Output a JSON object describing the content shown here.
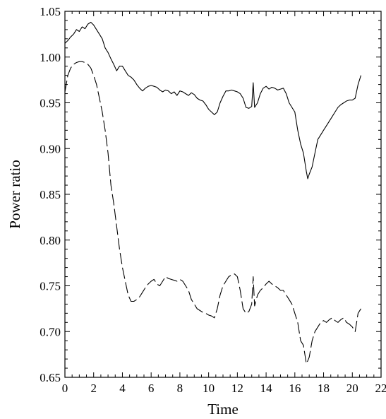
{
  "chart_data": {
    "type": "line",
    "title": "",
    "xlabel": "Time",
    "ylabel": "Power ratio",
    "xlim": [
      0,
      22
    ],
    "ylim": [
      0.65,
      1.05
    ],
    "x_ticks": [
      "0",
      "2",
      "4",
      "6",
      "8",
      "10",
      "12",
      "14",
      "16",
      "18",
      "20",
      "22"
    ],
    "y_ticks": [
      "0.65",
      "0.70",
      "0.75",
      "0.80",
      "0.85",
      "0.90",
      "0.95",
      "1.00",
      "1.05"
    ],
    "grid": false,
    "legend": "none",
    "series": [
      {
        "style": "solid",
        "color": "#000000",
        "x": [
          0,
          0.2,
          0.4,
          0.6,
          0.8,
          1.0,
          1.2,
          1.4,
          1.6,
          1.8,
          2.0,
          2.2,
          2.4,
          2.6,
          2.8,
          3.0,
          3.2,
          3.4,
          3.6,
          3.8,
          4.0,
          4.2,
          4.4,
          4.6,
          4.8,
          5.0,
          5.2,
          5.4,
          5.6,
          5.8,
          6.0,
          6.2,
          6.4,
          6.6,
          6.8,
          7.0,
          7.2,
          7.4,
          7.6,
          7.8,
          8.0,
          8.2,
          8.4,
          8.6,
          8.8,
          9.0,
          9.2,
          9.4,
          9.6,
          9.8,
          10.0,
          10.2,
          10.4,
          10.6,
          10.8,
          11.0,
          11.2,
          11.4,
          11.6,
          11.8,
          12.0,
          12.2,
          12.4,
          12.6,
          12.8,
          13.0,
          13.1,
          13.2,
          13.4,
          13.6,
          13.8,
          14.0,
          14.2,
          14.4,
          14.6,
          14.8,
          15.0,
          15.2,
          15.4,
          15.6,
          15.8,
          16.0,
          16.2,
          16.4,
          16.6,
          16.8,
          16.9,
          17.0,
          17.2,
          17.4,
          17.6,
          17.8,
          18.0,
          18.2,
          18.4,
          18.6,
          18.8,
          19.0,
          19.2,
          19.4,
          19.6,
          19.8,
          20.0,
          20.2,
          20.4,
          20.6
        ],
        "y": [
          1.015,
          1.018,
          1.022,
          1.025,
          1.03,
          1.028,
          1.033,
          1.031,
          1.036,
          1.038,
          1.035,
          1.03,
          1.025,
          1.02,
          1.01,
          1.005,
          0.998,
          0.992,
          0.985,
          0.99,
          0.99,
          0.985,
          0.98,
          0.978,
          0.975,
          0.97,
          0.966,
          0.963,
          0.966,
          0.968,
          0.969,
          0.968,
          0.967,
          0.964,
          0.962,
          0.964,
          0.963,
          0.96,
          0.962,
          0.958,
          0.963,
          0.962,
          0.96,
          0.958,
          0.961,
          0.959,
          0.955,
          0.953,
          0.952,
          0.948,
          0.943,
          0.94,
          0.937,
          0.94,
          0.95,
          0.957,
          0.963,
          0.963,
          0.964,
          0.963,
          0.962,
          0.96,
          0.955,
          0.945,
          0.944,
          0.946,
          0.972,
          0.945,
          0.95,
          0.96,
          0.966,
          0.968,
          0.965,
          0.967,
          0.966,
          0.964,
          0.965,
          0.966,
          0.96,
          0.95,
          0.945,
          0.94,
          0.92,
          0.905,
          0.895,
          0.875,
          0.867,
          0.872,
          0.88,
          0.895,
          0.91,
          0.915,
          0.92,
          0.925,
          0.93,
          0.935,
          0.94,
          0.945,
          0.948,
          0.95,
          0.952,
          0.953,
          0.953,
          0.955,
          0.97,
          0.98
        ]
      },
      {
        "style": "dashed",
        "color": "#000000",
        "x": [
          0,
          0.2,
          0.4,
          0.6,
          0.8,
          1.0,
          1.2,
          1.4,
          1.6,
          1.8,
          2.0,
          2.2,
          2.4,
          2.6,
          2.8,
          3.0,
          3.2,
          3.4,
          3.6,
          3.8,
          4.0,
          4.2,
          4.4,
          4.6,
          4.8,
          5.0,
          5.2,
          5.4,
          5.6,
          5.8,
          6.0,
          6.2,
          6.4,
          6.6,
          6.8,
          7.0,
          7.2,
          7.4,
          7.6,
          7.8,
          8.0,
          8.2,
          8.4,
          8.6,
          8.8,
          9.0,
          9.2,
          9.4,
          9.6,
          9.8,
          10.0,
          10.2,
          10.4,
          10.6,
          10.8,
          11.0,
          11.2,
          11.4,
          11.6,
          11.8,
          12.0,
          12.2,
          12.4,
          12.6,
          12.8,
          13.0,
          13.1,
          13.2,
          13.4,
          13.6,
          13.8,
          14.0,
          14.2,
          14.4,
          14.6,
          14.8,
          15.0,
          15.2,
          15.4,
          15.6,
          15.8,
          16.0,
          16.2,
          16.4,
          16.6,
          16.8,
          16.9,
          17.0,
          17.2,
          17.4,
          17.6,
          17.8,
          18.0,
          18.2,
          18.4,
          18.6,
          18.8,
          19.0,
          19.2,
          19.4,
          19.6,
          19.8,
          20.0,
          20.2,
          20.4,
          20.6
        ],
        "y": [
          0.962,
          0.98,
          0.988,
          0.992,
          0.994,
          0.995,
          0.995,
          0.994,
          0.992,
          0.988,
          0.98,
          0.97,
          0.955,
          0.94,
          0.92,
          0.895,
          0.86,
          0.84,
          0.815,
          0.79,
          0.77,
          0.755,
          0.74,
          0.733,
          0.733,
          0.735,
          0.738,
          0.743,
          0.748,
          0.752,
          0.755,
          0.757,
          0.752,
          0.75,
          0.755,
          0.76,
          0.758,
          0.757,
          0.756,
          0.755,
          0.757,
          0.755,
          0.75,
          0.745,
          0.735,
          0.73,
          0.725,
          0.723,
          0.721,
          0.72,
          0.718,
          0.717,
          0.715,
          0.725,
          0.74,
          0.75,
          0.755,
          0.76,
          0.762,
          0.763,
          0.76,
          0.745,
          0.725,
          0.72,
          0.722,
          0.73,
          0.76,
          0.728,
          0.74,
          0.745,
          0.748,
          0.752,
          0.755,
          0.752,
          0.75,
          0.748,
          0.745,
          0.745,
          0.74,
          0.735,
          0.73,
          0.72,
          0.71,
          0.69,
          0.685,
          0.665,
          0.668,
          0.672,
          0.69,
          0.7,
          0.705,
          0.71,
          0.712,
          0.71,
          0.713,
          0.715,
          0.712,
          0.71,
          0.713,
          0.715,
          0.71,
          0.708,
          0.705,
          0.7,
          0.72,
          0.725
        ]
      }
    ]
  }
}
